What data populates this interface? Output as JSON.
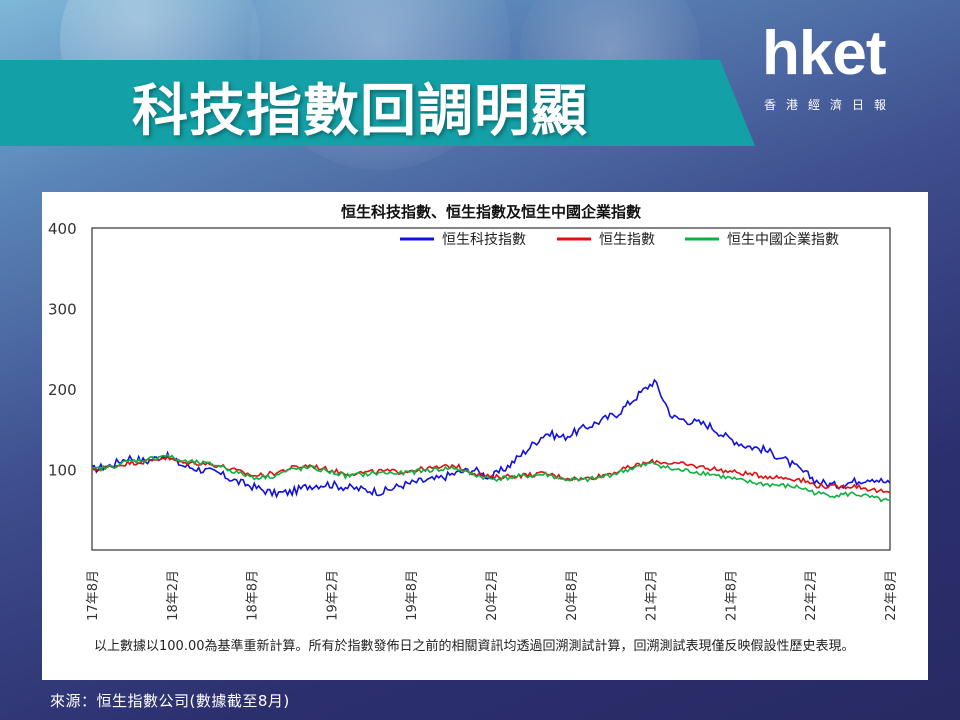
{
  "slide": {
    "title": "科技指數回調明顯",
    "logo_main": "hket",
    "logo_sub": "香港經濟日報",
    "note": "以上數據以100.00為基準重新計算。所有於指數發佈日之前的相關資訊均透過回溯測試計算，回溯測試表現僅反映假設性歷史表現。",
    "source": "來源：恒生指數公司(數據截至8月)"
  },
  "chart_data": {
    "type": "line",
    "title": "恒生科技指數、恒生指數及恒生中國企業指數",
    "ylim": [
      0,
      400
    ],
    "yticks": [
      400,
      300,
      200,
      100
    ],
    "xlabels": [
      "17年8月",
      "18年2月",
      "18年8月",
      "19年2月",
      "19年8月",
      "20年2月",
      "20年8月",
      "21年2月",
      "21年8月",
      "22年2月",
      "22年8月"
    ],
    "legend_position": "top-right",
    "series": [
      {
        "name": "恒生科技指數",
        "color": "#1010e0",
        "values": [
          100,
          105,
          115,
          110,
          118,
          105,
          100,
          95,
          85,
          78,
          70,
          72,
          80,
          82,
          78,
          75,
          72,
          80,
          85,
          88,
          95,
          100,
          90,
          105,
          125,
          145,
          140,
          150,
          160,
          170,
          190,
          210,
          165,
          160,
          155,
          140,
          130,
          125,
          115,
          100,
          85,
          80,
          85,
          90,
          82
        ]
      },
      {
        "name": "恒生指數",
        "color": "#e01010",
        "values": [
          100,
          103,
          108,
          110,
          115,
          108,
          108,
          105,
          98,
          92,
          95,
          102,
          105,
          100,
          95,
          96,
          98,
          97,
          100,
          102,
          105,
          96,
          90,
          92,
          93,
          95,
          90,
          88,
          92,
          98,
          105,
          110,
          108,
          105,
          102,
          98,
          95,
          92,
          90,
          88,
          80,
          78,
          80,
          75,
          70
        ]
      },
      {
        "name": "恒生中國企業指數",
        "color": "#10b040",
        "values": [
          100,
          103,
          110,
          112,
          118,
          110,
          108,
          105,
          96,
          90,
          92,
          100,
          102,
          98,
          92,
          94,
          96,
          95,
          98,
          100,
          102,
          94,
          88,
          90,
          92,
          94,
          88,
          86,
          90,
          96,
          103,
          108,
          100,
          98,
          95,
          90,
          85,
          82,
          80,
          78,
          70,
          68,
          70,
          65,
          60
        ]
      }
    ]
  }
}
